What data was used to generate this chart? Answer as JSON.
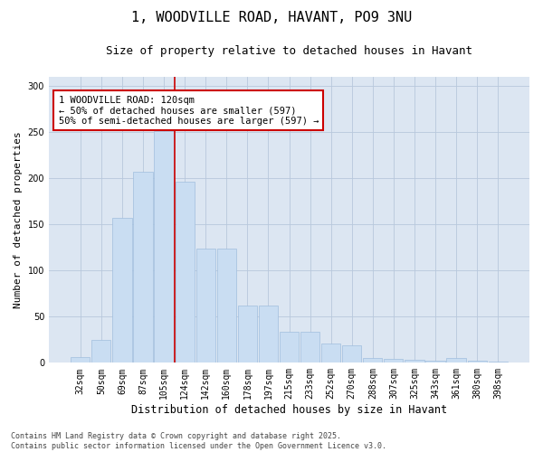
{
  "title": "1, WOODVILLE ROAD, HAVANT, PO9 3NU",
  "subtitle": "Size of property relative to detached houses in Havant",
  "xlabel": "Distribution of detached houses by size in Havant",
  "ylabel": "Number of detached properties",
  "categories": [
    "32sqm",
    "50sqm",
    "69sqm",
    "87sqm",
    "105sqm",
    "124sqm",
    "142sqm",
    "160sqm",
    "178sqm",
    "197sqm",
    "215sqm",
    "233sqm",
    "252sqm",
    "270sqm",
    "288sqm",
    "307sqm",
    "325sqm",
    "343sqm",
    "361sqm",
    "380sqm",
    "398sqm"
  ],
  "values": [
    6,
    25,
    157,
    207,
    251,
    196,
    124,
    124,
    62,
    62,
    34,
    34,
    21,
    19,
    5,
    4,
    3,
    2,
    5,
    2,
    1
  ],
  "bar_color": "#c9ddf2",
  "bar_edge_color": "#a0bedd",
  "vline_color": "#cc0000",
  "annotation_text": "1 WOODVILLE ROAD: 120sqm\n← 50% of detached houses are smaller (597)\n50% of semi-detached houses are larger (597) →",
  "annotation_box_facecolor": "#ffffff",
  "annotation_box_edgecolor": "#cc0000",
  "ylim": [
    0,
    310
  ],
  "yticks": [
    0,
    50,
    100,
    150,
    200,
    250,
    300
  ],
  "grid_color": "#b8c8dc",
  "bg_color": "#dce6f2",
  "footer_text": "Contains HM Land Registry data © Crown copyright and database right 2025.\nContains public sector information licensed under the Open Government Licence v3.0.",
  "title_fontsize": 11,
  "subtitle_fontsize": 9,
  "xlabel_fontsize": 8.5,
  "ylabel_fontsize": 8,
  "tick_fontsize": 7,
  "annotation_fontsize": 7.5,
  "footer_fontsize": 6
}
